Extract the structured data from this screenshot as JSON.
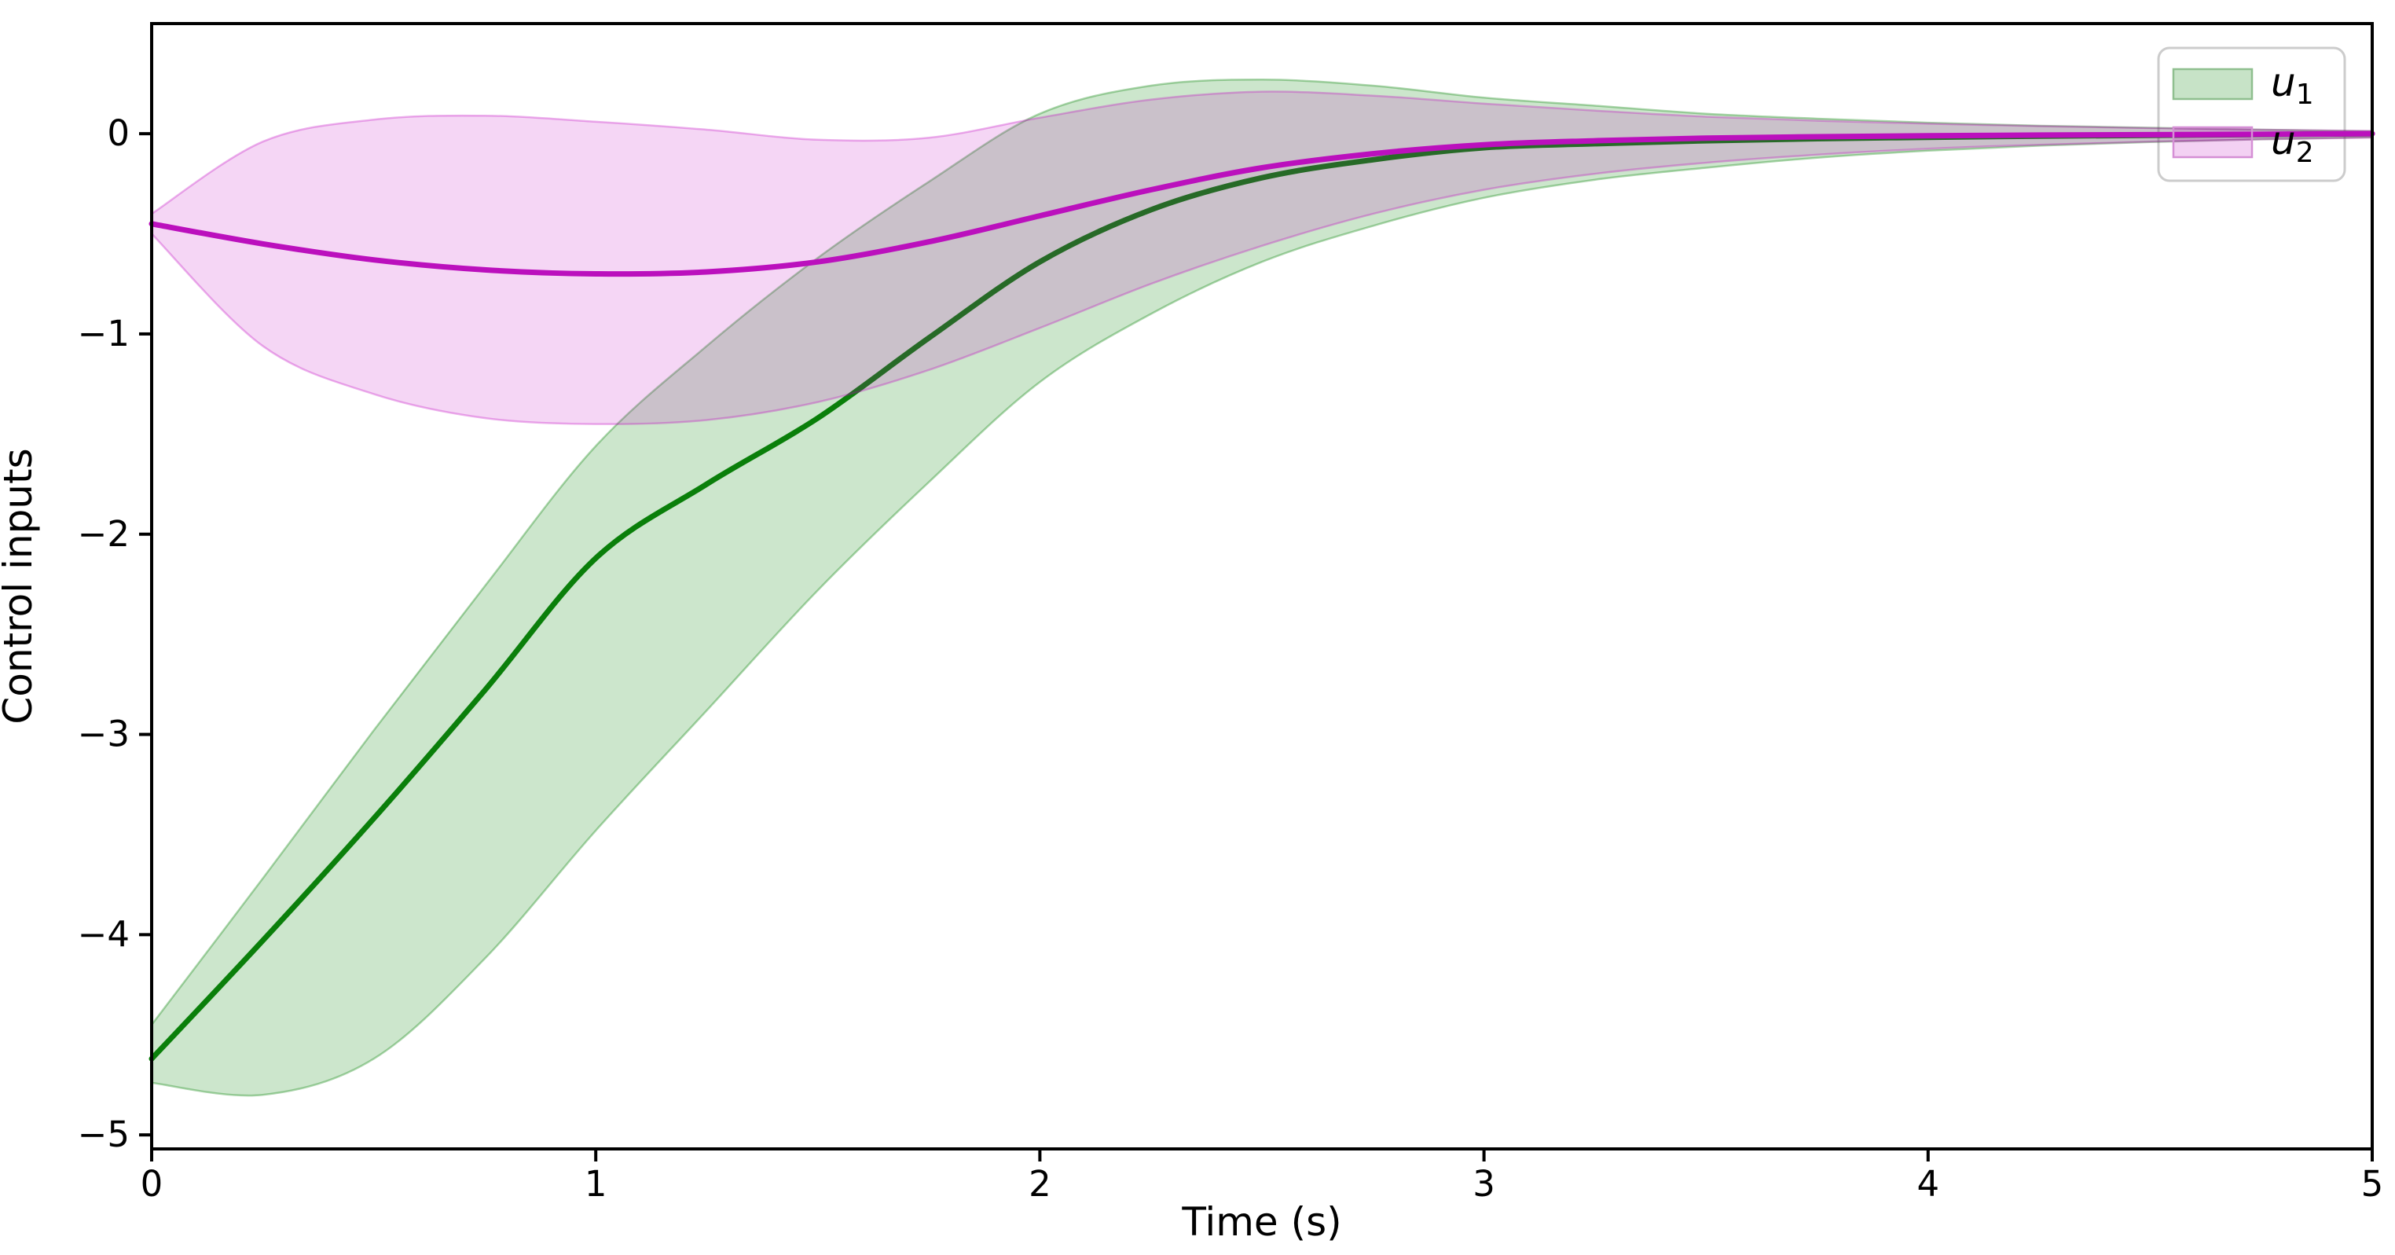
{
  "figure": {
    "background": "#ffffff"
  },
  "chart_data": {
    "type": "line",
    "title": "",
    "xlabel": "Time (s)",
    "ylabel": "Control inputs",
    "xlim": [
      0,
      5
    ],
    "ylim": [
      -5.07,
      0.55
    ],
    "grid": false,
    "x_ticks": {
      "values": [
        0,
        1,
        2,
        3,
        4,
        5
      ],
      "labels": [
        "0",
        "1",
        "2",
        "3",
        "4",
        "5"
      ]
    },
    "y_ticks": {
      "values": [
        0,
        -1,
        -2,
        -3,
        -4,
        -5
      ],
      "labels": [
        "0",
        "−1",
        "−2",
        "−3",
        "−4",
        "−5"
      ]
    },
    "legend": {
      "position": "upper right",
      "items": [
        {
          "base": "u",
          "sub": "1",
          "series": "u1"
        },
        {
          "base": "u",
          "sub": "2",
          "series": "u2"
        }
      ]
    },
    "x": [
      0,
      0.25,
      0.5,
      0.75,
      1,
      1.25,
      1.5,
      1.75,
      2,
      2.25,
      2.5,
      2.75,
      3,
      3.25,
      3.5,
      3.75,
      4,
      4.25,
      4.5,
      4.75,
      5
    ],
    "series": [
      {
        "name": "u1",
        "line_color": "#0a7f0a",
        "band_fill": "rgba(0,128,0,0.20)",
        "band_edge": "rgba(0,128,0,0.33)",
        "mean": [
          -4.62,
          -4.03,
          -3.42,
          -2.78,
          -2.12,
          -1.75,
          -1.42,
          -1.02,
          -0.64,
          -0.38,
          -0.22,
          -0.13,
          -0.07,
          -0.05,
          -0.035,
          -0.025,
          -0.018,
          -0.012,
          -0.008,
          -0.004,
          0
        ],
        "band_hi": [
          -4.45,
          -3.72,
          -2.98,
          -2.26,
          -1.56,
          -1.06,
          -0.62,
          -0.24,
          0.1,
          0.24,
          0.27,
          0.24,
          0.18,
          0.14,
          0.1,
          0.075,
          0.055,
          0.04,
          0.03,
          0.02,
          0.012
        ],
        "band_lo": [
          -4.74,
          -4.8,
          -4.62,
          -4.12,
          -3.48,
          -2.88,
          -2.28,
          -1.74,
          -1.24,
          -0.9,
          -0.64,
          -0.46,
          -0.32,
          -0.23,
          -0.17,
          -0.12,
          -0.085,
          -0.06,
          -0.042,
          -0.028,
          -0.018
        ]
      },
      {
        "name": "u2",
        "line_color": "#bb10bd",
        "band_fill": "rgba(191,0,191,0.16)",
        "band_edge": "rgba(191,0,191,0.30)",
        "mean": [
          -0.45,
          -0.55,
          -0.63,
          -0.68,
          -0.7,
          -0.69,
          -0.64,
          -0.54,
          -0.41,
          -0.28,
          -0.17,
          -0.1,
          -0.055,
          -0.035,
          -0.022,
          -0.015,
          -0.01,
          -0.007,
          -0.005,
          -0.003,
          0
        ],
        "band_hi": [
          -0.4,
          -0.04,
          0.07,
          0.09,
          0.06,
          0.02,
          -0.03,
          -0.02,
          0.08,
          0.17,
          0.21,
          0.19,
          0.15,
          0.115,
          0.085,
          0.065,
          0.05,
          0.038,
          0.028,
          0.02,
          0.014
        ],
        "band_lo": [
          -0.5,
          -1.06,
          -1.3,
          -1.42,
          -1.45,
          -1.43,
          -1.34,
          -1.18,
          -0.97,
          -0.75,
          -0.56,
          -0.4,
          -0.28,
          -0.2,
          -0.145,
          -0.105,
          -0.075,
          -0.055,
          -0.04,
          -0.028,
          -0.02
        ]
      }
    ]
  }
}
